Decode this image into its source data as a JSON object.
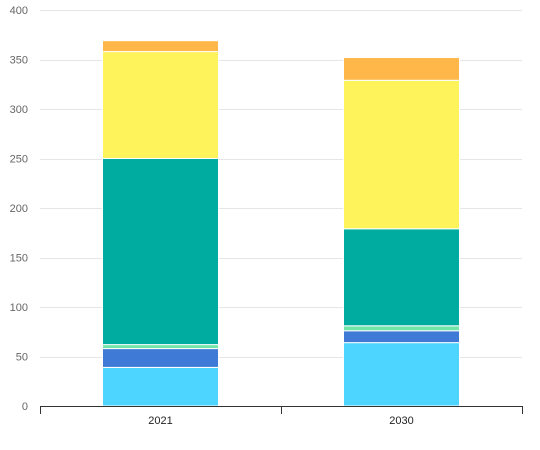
{
  "chart_data": {
    "type": "bar",
    "stacked": true,
    "categories": [
      "2021",
      "2030"
    ],
    "series": [
      {
        "values": [
          39,
          64
        ],
        "color": "#4dd5ff"
      },
      {
        "values": [
          19,
          12
        ],
        "color": "#3f7ad6"
      },
      {
        "values": [
          4,
          5
        ],
        "color": "#71e5a8"
      },
      {
        "values": [
          188,
          98
        ],
        "color": "#00ac9f"
      },
      {
        "values": [
          108,
          150
        ],
        "color": "#fff35b"
      },
      {
        "values": [
          11,
          23
        ],
        "color": "#ffb74a"
      }
    ],
    "title": "",
    "xlabel": "",
    "ylabel": "",
    "ylim": [
      0,
      400
    ],
    "yticks": [
      0,
      50,
      100,
      150,
      200,
      250,
      300,
      350,
      400
    ],
    "grid": true,
    "legend": "none"
  }
}
